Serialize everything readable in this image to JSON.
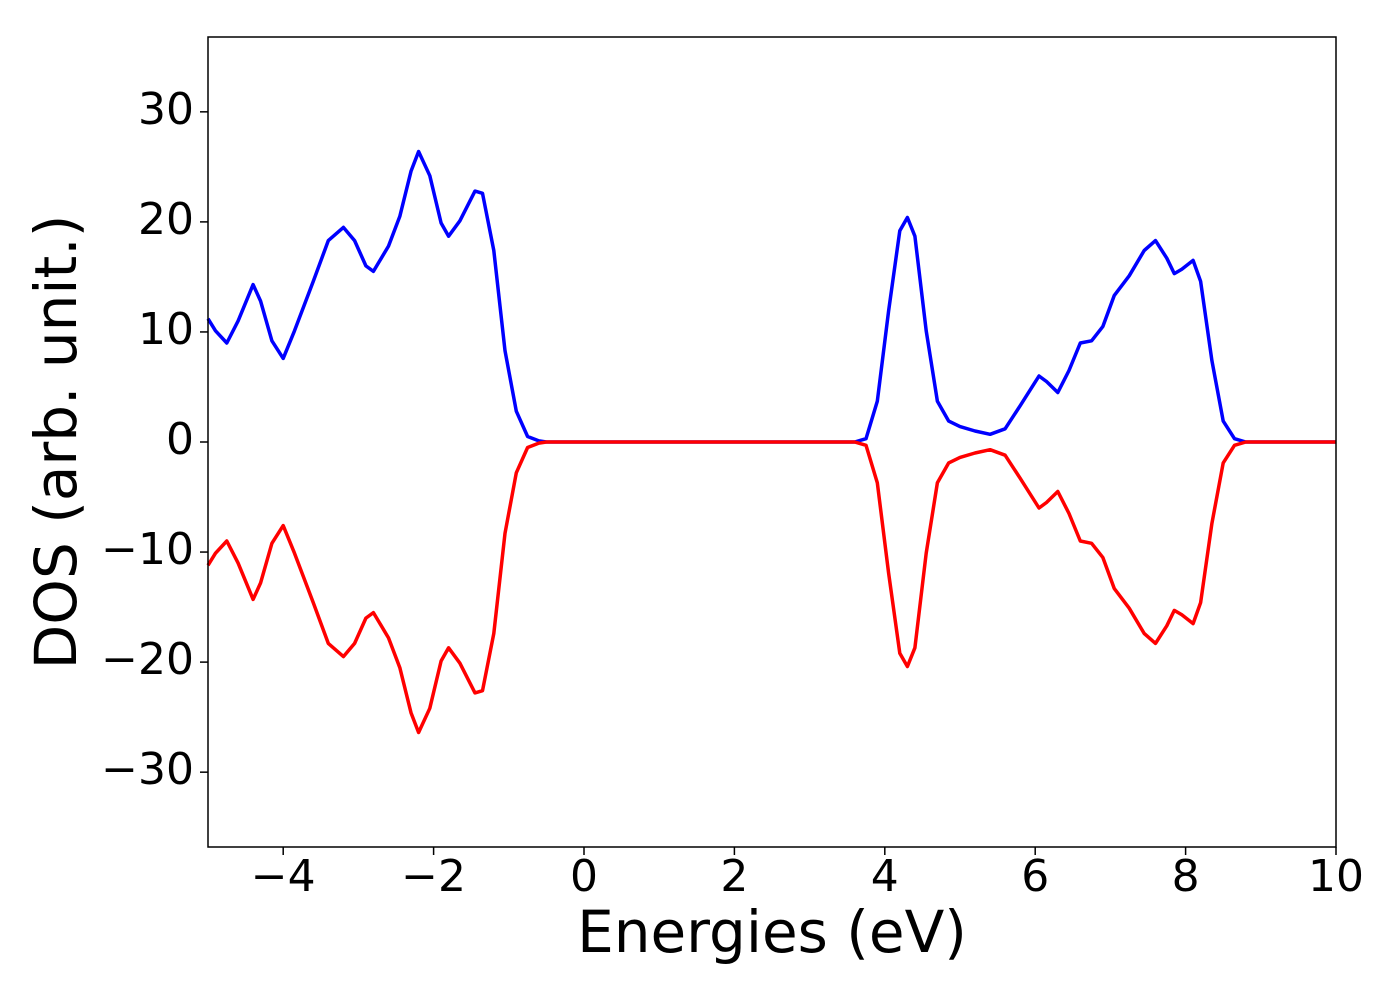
{
  "chart_data": {
    "type": "line",
    "xlabel": "Energies (eV)",
    "ylabel": "DOS (arb. unit.)",
    "x": [
      -5,
      -4.9,
      -4.75,
      -4.6,
      -4.4,
      -4.3,
      -4.15,
      -4.0,
      -3.85,
      -3.6,
      -3.4,
      -3.2,
      -3.05,
      -2.9,
      -2.8,
      -2.6,
      -2.45,
      -2.3,
      -2.2,
      -2.05,
      -1.9,
      -1.8,
      -1.65,
      -1.45,
      -1.35,
      -1.2,
      -1.05,
      -0.9,
      -0.75,
      -0.6,
      -0.5,
      3.6,
      3.75,
      3.9,
      4.05,
      4.2,
      4.3,
      4.4,
      4.55,
      4.7,
      4.85,
      5.0,
      5.2,
      5.4,
      5.6,
      5.8,
      6.05,
      6.15,
      6.3,
      6.45,
      6.6,
      6.75,
      6.9,
      7.05,
      7.25,
      7.45,
      7.6,
      7.75,
      7.85,
      7.95,
      8.1,
      8.2,
      8.35,
      8.5,
      8.65,
      8.8,
      10
    ],
    "series": [
      {
        "color": "#0000ff",
        "values": [
          11.2,
          10.1,
          9.0,
          11,
          14.3,
          12.8,
          9.2,
          7.6,
          10.1,
          14.6,
          18.3,
          19.5,
          18.3,
          16,
          15.5,
          17.8,
          20.5,
          24.6,
          26.4,
          24.2,
          19.9,
          18.7,
          20.1,
          22.8,
          22.6,
          17.4,
          8.3,
          2.8,
          0.5,
          0.1,
          0,
          0,
          0.3,
          3.7,
          11.9,
          19.2,
          20.4,
          18.7,
          10.1,
          3.7,
          1.9,
          1.4,
          1.0,
          0.7,
          1.2,
          3.3,
          6.0,
          5.5,
          4.5,
          6.5,
          9.0,
          9.2,
          10.5,
          13.3,
          15.1,
          17.4,
          18.3,
          16.7,
          15.3,
          15.7,
          16.5,
          14.6,
          7.4,
          1.9,
          0.3,
          0,
          0
        ]
      },
      {
        "color": "#ff0000",
        "values": [
          -11.2,
          -10.1,
          -9.0,
          -11,
          -14.3,
          -12.8,
          -9.2,
          -7.6,
          -10.1,
          -14.6,
          -18.3,
          -19.5,
          -18.3,
          -16,
          -15.5,
          -17.8,
          -20.5,
          -24.6,
          -26.4,
          -24.2,
          -19.9,
          -18.7,
          -20.1,
          -22.8,
          -22.6,
          -17.4,
          -8.3,
          -2.8,
          -0.5,
          -0.1,
          0,
          0,
          -0.3,
          -3.7,
          -11.9,
          -19.2,
          -20.4,
          -18.7,
          -10.1,
          -3.7,
          -1.9,
          -1.4,
          -1.0,
          -0.7,
          -1.2,
          -3.3,
          -6.0,
          -5.5,
          -4.5,
          -6.5,
          -9.0,
          -9.2,
          -10.5,
          -13.3,
          -15.1,
          -17.4,
          -18.3,
          -16.7,
          -15.3,
          -15.7,
          -16.5,
          -14.6,
          -7.4,
          -1.9,
          -0.3,
          0,
          0
        ]
      }
    ],
    "xlim": [
      -5,
      10
    ],
    "xticks": [
      {
        "value": -4,
        "label": "−4"
      },
      {
        "value": -2,
        "label": "−2"
      },
      0,
      2,
      4,
      6,
      8,
      10
    ],
    "ylim": [
      -36.8,
      36.8
    ],
    "yticks": [
      {
        "value": -30,
        "label": "−30"
      },
      {
        "value": -20,
        "label": "−20"
      },
      {
        "value": -10,
        "label": "−10"
      },
      0,
      10,
      20,
      30
    ]
  }
}
